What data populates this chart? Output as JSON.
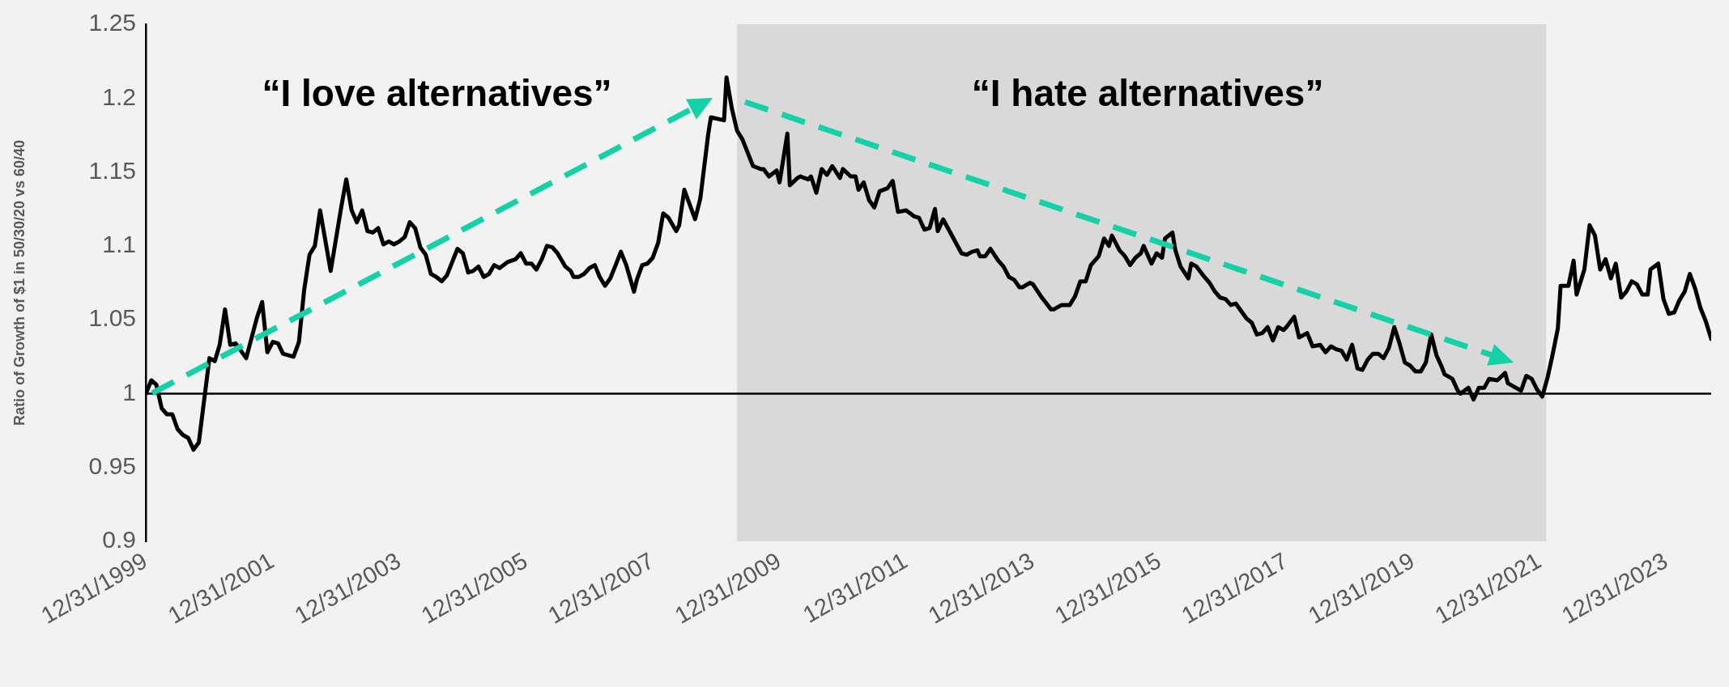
{
  "chart_data": {
    "type": "line",
    "ylabel": "Ratio of Growth of $1 in 50/30/20 vs 60/40",
    "annotations": [
      "“I love alternatives”",
      "“I hate alternatives”"
    ],
    "xlim": [
      "1999-12-31",
      "2024-09-15"
    ],
    "ylim": [
      0.9,
      1.25
    ],
    "xticks": [
      {
        "value": "1999-12-31",
        "label": "12/31/1999"
      },
      {
        "value": "2001-12-31",
        "label": "12/31/2001"
      },
      {
        "value": "2003-12-31",
        "label": "12/31/2003"
      },
      {
        "value": "2005-12-31",
        "label": "12/31/2005"
      },
      {
        "value": "2007-12-31",
        "label": "12/31/2007"
      },
      {
        "value": "2009-12-31",
        "label": "12/31/2009"
      },
      {
        "value": "2011-12-31",
        "label": "12/31/2011"
      },
      {
        "value": "2013-12-31",
        "label": "12/31/2013"
      },
      {
        "value": "2015-12-31",
        "label": "12/31/2015"
      },
      {
        "value": "2017-12-31",
        "label": "12/31/2017"
      },
      {
        "value": "2019-12-31",
        "label": "12/31/2019"
      },
      {
        "value": "2021-12-31",
        "label": "12/31/2021"
      },
      {
        "value": "2023-12-31",
        "label": "12/31/2023"
      }
    ],
    "yticks": [
      0.9,
      0.95,
      1,
      1.05,
      1.1,
      1.15,
      1.2,
      1.25
    ],
    "grid": false,
    "legend": false,
    "marker": "none",
    "line_style": "solid",
    "bands": [
      {
        "axis": "x",
        "from": "2009-05-01",
        "to": "2022-02-07",
        "color": "#d9d9d9"
      }
    ],
    "ref_lines": [
      {
        "axis": "y",
        "value": 1,
        "color": "#000000"
      }
    ],
    "series": [
      {
        "color": "#000000",
        "x": [
          "2000-01-01",
          "2000-02-01",
          "2000-03-01",
          "2000-04-01",
          "2000-05-01",
          "2000-06-01",
          "2000-07-01",
          "2000-08-01",
          "2000-09-01",
          "2000-10-01",
          "2000-11-01",
          "2001-01-01",
          "2001-02-01",
          "2001-03-01",
          "2001-04-01",
          "2001-05-01",
          "2001-06-01",
          "2001-08-01",
          "2001-10-01",
          "2001-11-01",
          "2001-12-01",
          "2002-01-01",
          "2002-02-01",
          "2002-03-01",
          "2002-05-01",
          "2002-06-01",
          "2002-07-01",
          "2002-08-01",
          "2002-09-01",
          "2002-10-01",
          "2002-12-01",
          "2003-02-01",
          "2003-03-01",
          "2003-04-01",
          "2003-05-01",
          "2003-06-01",
          "2003-07-01",
          "2003-08-01",
          "2003-09-01",
          "2003-10-01",
          "2003-11-01",
          "2003-12-01",
          "2004-01-01",
          "2004-02-01",
          "2004-03-01",
          "2004-04-01",
          "2004-05-01",
          "2004-06-01",
          "2004-07-01",
          "2004-08-01",
          "2004-09-01",
          "2004-10-01",
          "2004-12-01",
          "2005-01-01",
          "2005-02-01",
          "2005-03-01",
          "2005-04-01",
          "2005-05-01",
          "2005-06-01",
          "2005-07-01",
          "2005-08-01",
          "2005-09-15",
          "2005-11-01",
          "2005-12-01",
          "2006-01-01",
          "2006-02-01",
          "2006-03-01",
          "2006-04-01",
          "2006-05-01",
          "2006-06-01",
          "2006-07-01",
          "2006-08-15",
          "2006-09-15",
          "2006-10-01",
          "2006-11-01",
          "2006-12-01",
          "2007-01-01",
          "2007-02-01",
          "2007-03-01",
          "2007-04-01",
          "2007-05-01",
          "2007-06-01",
          "2007-07-01",
          "2007-08-01",
          "2007-09-15",
          "2007-10-01",
          "2007-11-01",
          "2007-12-01",
          "2008-01-01",
          "2008-02-01",
          "2008-03-01",
          "2008-04-01",
          "2008-05-15",
          "2008-06-01",
          "2008-07-01",
          "2008-09-01",
          "2008-10-01",
          "2008-11-15",
          "2008-12-01",
          "2009-02-15",
          "2009-03-01",
          "2009-04-01",
          "2009-05-01",
          "2009-06-01",
          "2009-08-01",
          "2009-09-15",
          "2009-10-01",
          "2009-11-01",
          "2009-12-15",
          "2010-01-01",
          "2010-02-15",
          "2010-03-01",
          "2010-04-15",
          "2010-05-01",
          "2010-06-15",
          "2010-07-01",
          "2010-08-01",
          "2010-09-01",
          "2010-10-01",
          "2010-11-01",
          "2010-12-15",
          "2011-01-01",
          "2011-02-15",
          "2011-03-15",
          "2011-04-01",
          "2011-05-01",
          "2011-06-01",
          "2011-07-01",
          "2011-08-01",
          "2011-09-15",
          "2011-10-15",
          "2011-11-15",
          "2012-01-01",
          "2012-02-15",
          "2012-03-15",
          "2012-04-15",
          "2012-05-15",
          "2012-06-15",
          "2012-07-01",
          "2012-08-01",
          "2012-11-15",
          "2012-12-15",
          "2013-01-15",
          "2013-02-15",
          "2013-03-01",
          "2013-04-01",
          "2013-05-01",
          "2013-06-15",
          "2013-07-15",
          "2013-08-15",
          "2013-09-15",
          "2013-10-15",
          "2013-11-01",
          "2013-12-15",
          "2014-01-01",
          "2014-02-15",
          "2014-04-15",
          "2014-05-01",
          "2014-06-15",
          "2014-08-01",
          "2014-09-01",
          "2014-10-01",
          "2014-11-01",
          "2014-12-01",
          "2015-01-15",
          "2015-02-15",
          "2015-03-15",
          "2015-04-01",
          "2015-05-15",
          "2015-06-15",
          "2015-07-15",
          "2015-08-15",
          "2015-09-15",
          "2015-10-01",
          "2015-11-15",
          "2015-12-15",
          "2016-01-15",
          "2016-02-01",
          "2016-03-15",
          "2016-04-01",
          "2016-05-01",
          "2016-06-15",
          "2016-07-01",
          "2016-08-01",
          "2016-09-15",
          "2016-10-15",
          "2016-11-15",
          "2016-12-15",
          "2017-01-15",
          "2017-02-15",
          "2017-03-15",
          "2017-05-15",
          "2017-06-15",
          "2017-07-15",
          "2017-08-15",
          "2017-09-15",
          "2017-10-15",
          "2017-11-15",
          "2017-12-15",
          "2018-01-01",
          "2018-02-15",
          "2018-03-15",
          "2018-05-01",
          "2018-06-01",
          "2018-07-15",
          "2018-08-15",
          "2018-09-15",
          "2018-10-15",
          "2018-11-15",
          "2018-12-15",
          "2019-01-15",
          "2019-02-15",
          "2019-03-15",
          "2019-04-15",
          "2019-05-15",
          "2019-06-15",
          "2019-07-15",
          "2019-08-15",
          "2019-09-15",
          "2019-10-15",
          "2019-11-15",
          "2019-12-15",
          "2020-01-15",
          "2020-02-15",
          "2020-03-15",
          "2020-04-15",
          "2020-05-15",
          "2020-06-15",
          "2020-07-01",
          "2020-08-15",
          "2020-09-15",
          "2020-10-01",
          "2020-11-15",
          "2020-12-15",
          "2021-01-15",
          "2021-02-15",
          "2021-03-15",
          "2021-05-01",
          "2021-06-15",
          "2021-07-01",
          "2021-08-15",
          "2021-09-15",
          "2021-10-15",
          "2021-11-15",
          "2021-12-15",
          "2022-01-15",
          "2022-02-15",
          "2022-03-15",
          "2022-04-15",
          "2022-05-01",
          "2022-06-15",
          "2022-07-15",
          "2022-08-01",
          "2022-09-15",
          "2022-10-15",
          "2022-11-15",
          "2022-12-15",
          "2023-01-15",
          "2023-02-15",
          "2023-03-15",
          "2023-04-15",
          "2023-05-15",
          "2023-06-15",
          "2023-07-15",
          "2023-08-15",
          "2023-09-15",
          "2023-10-01",
          "2023-11-15",
          "2023-12-15",
          "2024-01-15",
          "2024-02-15",
          "2024-03-15",
          "2024-04-15",
          "2024-05-15",
          "2024-06-15",
          "2024-07-15",
          "2024-08-15",
          "2024-09-15"
        ],
        "values": [
          1.0,
          1.009,
          1.006,
          0.99,
          0.986,
          0.986,
          0.976,
          0.972,
          0.97,
          0.962,
          0.967,
          1.024,
          1.022,
          1.033,
          1.057,
          1.033,
          1.034,
          1.024,
          1.051,
          1.062,
          1.028,
          1.035,
          1.034,
          1.027,
          1.025,
          1.035,
          1.07,
          1.094,
          1.1,
          1.124,
          1.083,
          1.127,
          1.145,
          1.124,
          1.116,
          1.124,
          1.11,
          1.109,
          1.112,
          1.101,
          1.103,
          1.101,
          1.103,
          1.106,
          1.116,
          1.112,
          1.099,
          1.094,
          1.081,
          1.079,
          1.076,
          1.08,
          1.098,
          1.095,
          1.082,
          1.083,
          1.086,
          1.079,
          1.081,
          1.087,
          1.085,
          1.089,
          1.091,
          1.095,
          1.088,
          1.088,
          1.084,
          1.091,
          1.1,
          1.099,
          1.095,
          1.086,
          1.083,
          1.079,
          1.079,
          1.081,
          1.085,
          1.087,
          1.079,
          1.073,
          1.078,
          1.087,
          1.096,
          1.087,
          1.069,
          1.077,
          1.087,
          1.088,
          1.092,
          1.102,
          1.122,
          1.119,
          1.11,
          1.114,
          1.138,
          1.118,
          1.132,
          1.175,
          1.187,
          1.185,
          1.214,
          1.193,
          1.178,
          1.172,
          1.154,
          1.152,
          1.152,
          1.147,
          1.151,
          1.143,
          1.176,
          1.141,
          1.146,
          1.147,
          1.145,
          1.147,
          1.136,
          1.152,
          1.148,
          1.154,
          1.146,
          1.152,
          1.147,
          1.147,
          1.138,
          1.143,
          1.131,
          1.126,
          1.137,
          1.139,
          1.144,
          1.123,
          1.124,
          1.12,
          1.119,
          1.111,
          1.112,
          1.125,
          1.11,
          1.118,
          1.095,
          1.094,
          1.096,
          1.097,
          1.093,
          1.093,
          1.098,
          1.09,
          1.086,
          1.079,
          1.077,
          1.072,
          1.072,
          1.075,
          1.074,
          1.066,
          1.057,
          1.057,
          1.06,
          1.06,
          1.066,
          1.076,
          1.076,
          1.087,
          1.093,
          1.105,
          1.1,
          1.107,
          1.097,
          1.093,
          1.087,
          1.092,
          1.095,
          1.1,
          1.088,
          1.095,
          1.092,
          1.105,
          1.109,
          1.097,
          1.086,
          1.078,
          1.088,
          1.086,
          1.079,
          1.075,
          1.069,
          1.065,
          1.064,
          1.06,
          1.061,
          1.051,
          1.048,
          1.04,
          1.041,
          1.045,
          1.036,
          1.045,
          1.043,
          1.045,
          1.052,
          1.038,
          1.041,
          1.032,
          1.033,
          1.028,
          1.032,
          1.03,
          1.029,
          1.023,
          1.033,
          1.017,
          1.016,
          1.023,
          1.027,
          1.027,
          1.024,
          1.031,
          1.045,
          1.034,
          1.021,
          1.019,
          1.015,
          1.015,
          1.021,
          1.04,
          1.026,
          1.018,
          1.013,
          1.01,
          1.002,
          1.0,
          1.004,
          0.996,
          1.004,
          1.004,
          1.01,
          1.009,
          1.014,
          1.007,
          1.004,
          1.002,
          1.012,
          1.01,
          1.003,
          0.998,
          1.011,
          1.026,
          1.044,
          1.073,
          1.073,
          1.09,
          1.067,
          1.084,
          1.114,
          1.107,
          1.084,
          1.091,
          1.078,
          1.088,
          1.065,
          1.069,
          1.076,
          1.074,
          1.067,
          1.067,
          1.084,
          1.088,
          1.064,
          1.054,
          1.055,
          1.063,
          1.069,
          1.081,
          1.071,
          1.058,
          1.049,
          1.037
        ]
      }
    ]
  }
}
